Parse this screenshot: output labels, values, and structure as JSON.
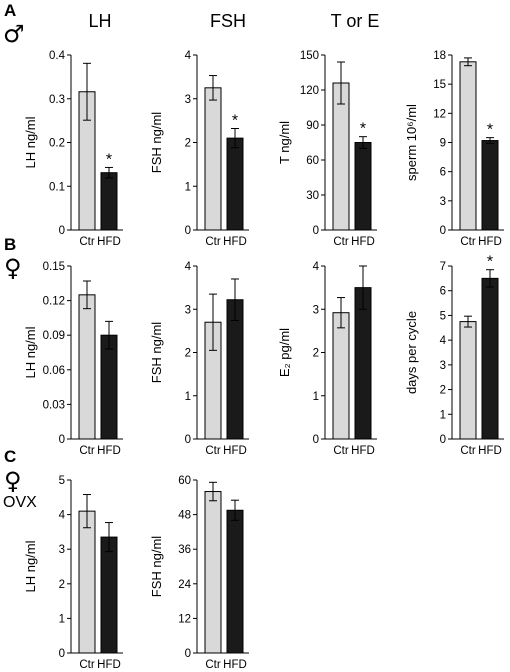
{
  "panels": [
    {
      "letter": "A",
      "symbol": "♂",
      "extra": ""
    },
    {
      "letter": "B",
      "symbol": "♀",
      "extra": ""
    },
    {
      "letter": "C",
      "symbol": "♀",
      "extra": "OVX"
    }
  ],
  "column_titles": [
    "LH",
    "FSH",
    "T or E"
  ],
  "colors": {
    "ctr": "#d9d9d9",
    "hfd": "#1a1a1a",
    "axis": "#000000"
  },
  "chart_data": [
    {
      "id": "A-LH",
      "type": "bar",
      "categories": [
        "Ctr",
        "HFD"
      ],
      "values": [
        0.316,
        0.131
      ],
      "errors": [
        0.065,
        0.012
      ],
      "ylabel": "LH ng/ml",
      "ylim": [
        0,
        0.4
      ],
      "yticks": [
        "0",
        "0.1",
        "0.2",
        "0.3",
        "0.4"
      ],
      "significance": [
        "",
        "*"
      ]
    },
    {
      "id": "A-FSH",
      "type": "bar",
      "categories": [
        "Ctr",
        "HFD"
      ],
      "values": [
        3.25,
        2.1
      ],
      "errors": [
        0.28,
        0.22
      ],
      "ylabel": "FSH ng/ml",
      "ylim": [
        0,
        4
      ],
      "yticks": [
        "0",
        "1",
        "2",
        "3",
        "4"
      ],
      "significance": [
        "",
        "*"
      ]
    },
    {
      "id": "A-T",
      "type": "bar",
      "categories": [
        "Ctr",
        "HFD"
      ],
      "values": [
        126,
        75
      ],
      "errors": [
        18,
        5
      ],
      "ylabel": "T ng/ml",
      "ylim": [
        0,
        150
      ],
      "yticks": [
        "0",
        "30",
        "60",
        "90",
        "120",
        "150"
      ],
      "significance": [
        "",
        "*"
      ]
    },
    {
      "id": "A-sperm",
      "type": "bar",
      "categories": [
        "Ctr",
        "HFD"
      ],
      "values": [
        17.3,
        9.2
      ],
      "errors": [
        0.4,
        0.3
      ],
      "ylabel": "sperm 10⁶/ml",
      "ylim": [
        0,
        18
      ],
      "yticks": [
        "0",
        "3",
        "6",
        "9",
        "12",
        "15",
        "18"
      ],
      "significance": [
        "",
        "*"
      ]
    },
    {
      "id": "B-LH",
      "type": "bar",
      "categories": [
        "Ctr",
        "HFD"
      ],
      "values": [
        0.125,
        0.09
      ],
      "errors": [
        0.012,
        0.012
      ],
      "ylabel": "LH ng/ml",
      "ylim": [
        0,
        0.15
      ],
      "yticks": [
        "0",
        "0.03",
        "0.06",
        "0.09",
        "0.12",
        "0.15"
      ],
      "significance": [
        "",
        ""
      ]
    },
    {
      "id": "B-FSH",
      "type": "bar",
      "categories": [
        "Ctr",
        "HFD"
      ],
      "values": [
        2.7,
        3.22
      ],
      "errors": [
        0.65,
        0.48
      ],
      "ylabel": "FSH ng/ml",
      "ylim": [
        0,
        4
      ],
      "yticks": [
        "0",
        "1",
        "2",
        "3",
        "4"
      ],
      "significance": [
        "",
        ""
      ]
    },
    {
      "id": "B-E2",
      "type": "bar",
      "categories": [
        "Ctr",
        "HFD"
      ],
      "values": [
        2.92,
        3.5
      ],
      "errors": [
        0.35,
        0.5
      ],
      "ylabel": "E₂ pg/ml",
      "ylim": [
        0,
        4
      ],
      "yticks": [
        "0",
        "1",
        "2",
        "3",
        "4"
      ],
      "significance": [
        "",
        ""
      ]
    },
    {
      "id": "B-cycle",
      "type": "bar",
      "categories": [
        "Ctr",
        "HFD"
      ],
      "values": [
        4.75,
        6.5
      ],
      "errors": [
        0.22,
        0.35
      ],
      "ylabel": "days per cycle",
      "ylim": [
        0,
        7
      ],
      "yticks": [
        "0",
        "1",
        "2",
        "3",
        "4",
        "5",
        "6",
        "7"
      ],
      "significance": [
        "",
        "*"
      ]
    },
    {
      "id": "C-LH",
      "type": "bar",
      "categories": [
        "Ctr",
        "HFD"
      ],
      "values": [
        4.1,
        3.35
      ],
      "errors": [
        0.48,
        0.42
      ],
      "ylabel": "LH ng/ml",
      "ylim": [
        0,
        5
      ],
      "yticks": [
        "0",
        "1",
        "2",
        "3",
        "4",
        "5"
      ],
      "significance": [
        "",
        ""
      ]
    },
    {
      "id": "C-FSH",
      "type": "bar",
      "categories": [
        "Ctr",
        "HFD"
      ],
      "values": [
        56,
        49.5
      ],
      "errors": [
        3.2,
        3.5
      ],
      "ylabel": "FSH ng/ml",
      "ylim": [
        0,
        60
      ],
      "yticks": [
        "0",
        "12",
        "24",
        "36",
        "48",
        "60"
      ],
      "significance": [
        "",
        ""
      ]
    }
  ]
}
